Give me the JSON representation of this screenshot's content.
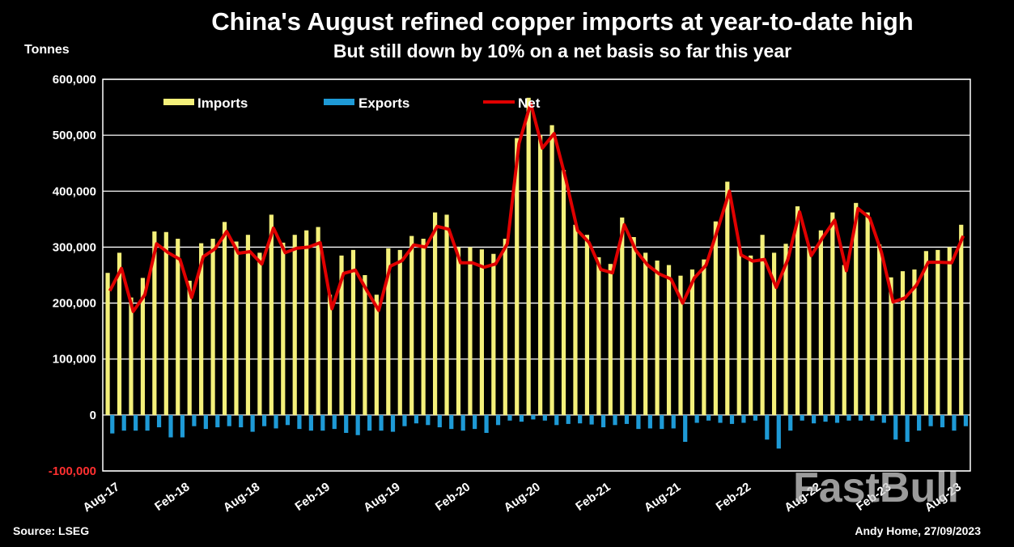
{
  "title": "China's August refined copper imports at year-to-date high",
  "subtitle": "But still down by 10% on a net basis so far this year",
  "source": "Source: LSEG",
  "credit": "Andy Home, 27/09/2023",
  "watermark": "FastBull",
  "colors": {
    "imports": "#f4f07a",
    "exports": "#1e9ad6",
    "net": "#e00000",
    "background": "#000000",
    "grid": "#ffffff"
  },
  "chart_data": {
    "type": "bar",
    "ylabel": "Tonnes",
    "ylim": [
      -100000,
      600000
    ],
    "yticks": [
      {
        "value": 600000,
        "label": "600,000"
      },
      {
        "value": 500000,
        "label": "500,000"
      },
      {
        "value": 400000,
        "label": "400,000"
      },
      {
        "value": 300000,
        "label": "300,000"
      },
      {
        "value": 200000,
        "label": "200,000"
      },
      {
        "value": 100000,
        "label": "100,000"
      },
      {
        "value": 0,
        "label": "0"
      },
      {
        "value": -100000,
        "label": "-100,000"
      }
    ],
    "grid": true,
    "legend_position": "top",
    "xtick_labels": [
      {
        "index": 0,
        "label": "Aug-17"
      },
      {
        "index": 6,
        "label": "Feb-18"
      },
      {
        "index": 12,
        "label": "Aug-18"
      },
      {
        "index": 18,
        "label": "Feb-19"
      },
      {
        "index": 24,
        "label": "Aug-19"
      },
      {
        "index": 30,
        "label": "Feb-20"
      },
      {
        "index": 36,
        "label": "Aug-20"
      },
      {
        "index": 42,
        "label": "Feb-21"
      },
      {
        "index": 48,
        "label": "Aug-21"
      },
      {
        "index": 54,
        "label": "Feb-22"
      },
      {
        "index": 60,
        "label": "Aug-22"
      },
      {
        "index": 66,
        "label": "Feb-23"
      },
      {
        "index": 72,
        "label": "Aug-23"
      }
    ],
    "series": [
      {
        "name": "Imports",
        "type": "bar",
        "values": [
          254000,
          290000,
          210000,
          245000,
          328000,
          327000,
          315000,
          240000,
          307000,
          315000,
          345000,
          310000,
          322000,
          290000,
          358000,
          308000,
          322000,
          330000,
          336000,
          215000,
          285000,
          295000,
          250000,
          215000,
          298000,
          295000,
          320000,
          315000,
          362000,
          358000,
          300000,
          300000,
          296000,
          288000,
          315000,
          495000,
          567000,
          500000,
          518000,
          438000,
          340000,
          322000,
          282000,
          270000,
          353000,
          318000,
          290000,
          276000,
          268000,
          249000,
          260000,
          278000,
          346000,
          417000,
          300000,
          285000,
          322000,
          290000,
          306000,
          373000,
          300000,
          330000,
          362000,
          268000,
          379000,
          362000,
          305000,
          246000,
          257000,
          260000,
          293000,
          295000,
          300000,
          340000
        ]
      },
      {
        "name": "Exports",
        "type": "bar",
        "values": [
          -33000,
          -28000,
          -28000,
          -28000,
          -22000,
          -40000,
          -40000,
          -20000,
          -25000,
          -22000,
          -20000,
          -22000,
          -30000,
          -20000,
          -24000,
          -18000,
          -25000,
          -28000,
          -28000,
          -25000,
          -32000,
          -36000,
          -28000,
          -28000,
          -30000,
          -20000,
          -15000,
          -18000,
          -22000,
          -25000,
          -28000,
          -25000,
          -32000,
          -18000,
          -10000,
          -12000,
          -8000,
          -10000,
          -18000,
          -16000,
          -15000,
          -17000,
          -22000,
          -18000,
          -16000,
          -25000,
          -24000,
          -25000,
          -24000,
          -48000,
          -14000,
          -10000,
          -14000,
          -16000,
          -14000,
          -10000,
          -44000,
          -60000,
          -28000,
          -10000,
          -15000,
          -12000,
          -14000,
          -10000,
          -10000,
          -10000,
          -14000,
          -44000,
          -48000,
          -28000,
          -20000,
          -22000,
          -28000,
          -20000
        ]
      },
      {
        "name": "Net",
        "type": "line",
        "values": [
          222000,
          262000,
          185000,
          215000,
          306000,
          290000,
          278000,
          210000,
          283000,
          297000,
          328000,
          289000,
          292000,
          270000,
          334000,
          290000,
          298000,
          300000,
          308000,
          190000,
          253000,
          259000,
          222000,
          187000,
          266000,
          276000,
          304000,
          300000,
          337000,
          332000,
          272000,
          272000,
          264000,
          270000,
          306000,
          485000,
          557000,
          477000,
          503000,
          422000,
          330000,
          308000,
          260000,
          254000,
          340000,
          294000,
          268000,
          252000,
          243000,
          200000,
          245000,
          268000,
          332000,
          400000,
          286000,
          275000,
          278000,
          228000,
          278000,
          363000,
          285000,
          318000,
          348000,
          258000,
          369000,
          352000,
          291000,
          202000,
          209000,
          232000,
          273000,
          273000,
          272000,
          320000
        ]
      }
    ]
  }
}
